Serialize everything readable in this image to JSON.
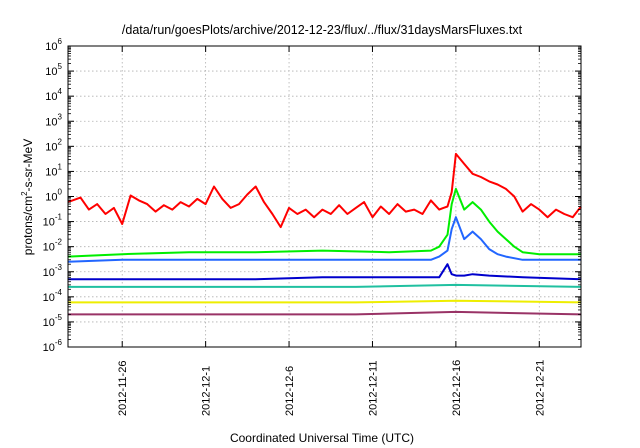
{
  "chart_data": {
    "type": "line",
    "title": "/data/run/goesPlots/archive/2012-12-23/flux/../flux/31daysMarsFluxes.txt",
    "xlabel": "Coordinated Universal Time (UTC)",
    "ylabel": {
      "prefix": "protons/cm",
      "sup": "2",
      "suffix": "-s-sr-MeV"
    },
    "yscale": "log",
    "ylim": [
      1e-06,
      1000000.0
    ],
    "yticks": [
      {
        "base": "10",
        "exp": "-6",
        "value": 1e-06
      },
      {
        "base": "10",
        "exp": "-5",
        "value": 1e-05
      },
      {
        "base": "10",
        "exp": "-4",
        "value": 0.0001
      },
      {
        "base": "10",
        "exp": "-3",
        "value": 0.001
      },
      {
        "base": "10",
        "exp": "-2",
        "value": 0.01
      },
      {
        "base": "10",
        "exp": "-1",
        "value": 0.1
      },
      {
        "base": "10",
        "exp": "0",
        "value": 1
      },
      {
        "base": "10",
        "exp": "1",
        "value": 10
      },
      {
        "base": "10",
        "exp": "2",
        "value": 100
      },
      {
        "base": "10",
        "exp": "3",
        "value": 1000
      },
      {
        "base": "10",
        "exp": "4",
        "value": 10000
      },
      {
        "base": "10",
        "exp": "5",
        "value": 100000
      },
      {
        "base": "10",
        "exp": "6",
        "value": 1000000
      }
    ],
    "xlim": [
      "2012-11-22T18:00",
      "2012-12-23T12:00"
    ],
    "xtick_labels": [
      "2012-11-26",
      "2012-12-1",
      "2012-12-6",
      "2012-12-11",
      "2012-12-16",
      "2012-12-21"
    ],
    "xtick_dates": [
      "2012-11-26",
      "2012-12-01",
      "2012-12-06",
      "2012-12-11",
      "2012-12-16",
      "2012-12-21"
    ],
    "grid": true,
    "legend": "none",
    "series": [
      {
        "color": "#ff0000",
        "x": [
          "2012-11-22T18:00",
          "2012-11-23T12:00",
          "2012-11-24T00:00",
          "2012-11-24T12:00",
          "2012-11-25T00:00",
          "2012-11-25T12:00",
          "2012-11-26T00:00",
          "2012-11-26T12:00",
          "2012-11-27T00:00",
          "2012-11-27T12:00",
          "2012-11-28T00:00",
          "2012-11-28T12:00",
          "2012-11-29T00:00",
          "2012-11-29T12:00",
          "2012-11-30T00:00",
          "2012-11-30T12:00",
          "2012-12-01T00:00",
          "2012-12-01T12:00",
          "2012-12-02T00:00",
          "2012-12-02T12:00",
          "2012-12-03T00:00",
          "2012-12-03T12:00",
          "2012-12-04T00:00",
          "2012-12-04T12:00",
          "2012-12-05T00:00",
          "2012-12-05T12:00",
          "2012-12-06T00:00",
          "2012-12-06T12:00",
          "2012-12-07T00:00",
          "2012-12-07T12:00",
          "2012-12-08T00:00",
          "2012-12-08T12:00",
          "2012-12-09T00:00",
          "2012-12-09T12:00",
          "2012-12-10T00:00",
          "2012-12-10T12:00",
          "2012-12-11T00:00",
          "2012-12-11T12:00",
          "2012-12-12T00:00",
          "2012-12-12T12:00",
          "2012-12-13T00:00",
          "2012-12-13T12:00",
          "2012-12-14T00:00",
          "2012-12-14T12:00",
          "2012-12-15T00:00",
          "2012-12-15T06:00",
          "2012-12-15T12:00",
          "2012-12-15T18:00",
          "2012-12-16T00:00",
          "2012-12-16T12:00",
          "2012-12-17T00:00",
          "2012-12-17T12:00",
          "2012-12-18T00:00",
          "2012-12-18T12:00",
          "2012-12-19T00:00",
          "2012-12-19T12:00",
          "2012-12-20T00:00",
          "2012-12-20T12:00",
          "2012-12-21T00:00",
          "2012-12-21T12:00",
          "2012-12-22T00:00",
          "2012-12-22T12:00",
          "2012-12-23T00:00",
          "2012-12-23T12:00"
        ],
        "values": [
          0.6,
          0.9,
          0.3,
          0.5,
          0.2,
          0.35,
          0.08,
          1.1,
          0.7,
          0.5,
          0.25,
          0.45,
          0.3,
          0.6,
          0.4,
          0.8,
          0.5,
          2.5,
          0.8,
          0.35,
          0.5,
          1.2,
          2.5,
          0.6,
          0.2,
          0.06,
          0.35,
          0.2,
          0.3,
          0.15,
          0.3,
          0.2,
          0.45,
          0.2,
          0.35,
          0.6,
          0.15,
          0.4,
          0.2,
          0.5,
          0.25,
          0.3,
          0.2,
          0.7,
          0.3,
          0.35,
          0.4,
          1.5,
          50,
          20,
          8,
          6,
          4,
          3,
          2,
          1,
          0.25,
          0.5,
          0.3,
          0.15,
          0.3,
          0.2,
          0.15,
          0.4
        ]
      },
      {
        "color": "#00ee00",
        "x": [
          "2012-11-22T18:00",
          "2012-11-26T00:00",
          "2012-11-30T00:00",
          "2012-12-04T00:00",
          "2012-12-08T00:00",
          "2012-12-12T00:00",
          "2012-12-14T12:00",
          "2012-12-15T00:00",
          "2012-12-15T12:00",
          "2012-12-15T18:00",
          "2012-12-16T00:00",
          "2012-12-16T12:00",
          "2012-12-17T00:00",
          "2012-12-17T12:00",
          "2012-12-18T00:00",
          "2012-12-18T12:00",
          "2012-12-19T00:00",
          "2012-12-19T12:00",
          "2012-12-20T00:00",
          "2012-12-21T00:00",
          "2012-12-22T00:00",
          "2012-12-23T12:00"
        ],
        "values": [
          0.004,
          0.005,
          0.006,
          0.006,
          0.007,
          0.006,
          0.007,
          0.01,
          0.03,
          0.5,
          2,
          0.3,
          0.6,
          0.3,
          0.1,
          0.04,
          0.02,
          0.01,
          0.006,
          0.005,
          0.005,
          0.005
        ]
      },
      {
        "color": "#2266ff",
        "x": [
          "2012-11-22T18:00",
          "2012-11-26T00:00",
          "2012-11-30T00:00",
          "2012-12-04T00:00",
          "2012-12-08T00:00",
          "2012-12-12T00:00",
          "2012-12-14T12:00",
          "2012-12-15T00:00",
          "2012-12-15T12:00",
          "2012-12-15T18:00",
          "2012-12-16T00:00",
          "2012-12-16T12:00",
          "2012-12-17T00:00",
          "2012-12-17T12:00",
          "2012-12-18T00:00",
          "2012-12-18T12:00",
          "2012-12-19T00:00",
          "2012-12-20T00:00",
          "2012-12-21T00:00",
          "2012-12-22T00:00",
          "2012-12-23T12:00"
        ],
        "values": [
          0.0025,
          0.003,
          0.003,
          0.003,
          0.003,
          0.003,
          0.003,
          0.004,
          0.007,
          0.05,
          0.15,
          0.02,
          0.04,
          0.02,
          0.008,
          0.005,
          0.004,
          0.003,
          0.003,
          0.003,
          0.003
        ]
      },
      {
        "color": "#0000cc",
        "x": [
          "2012-11-22T18:00",
          "2012-11-26T00:00",
          "2012-11-30T00:00",
          "2012-12-04T00:00",
          "2012-12-08T00:00",
          "2012-12-12T00:00",
          "2012-12-15T00:00",
          "2012-12-15T12:00",
          "2012-12-15T18:00",
          "2012-12-16T00:00",
          "2012-12-16T12:00",
          "2012-12-17T00:00",
          "2012-12-18T00:00",
          "2012-12-20T00:00",
          "2012-12-23T12:00"
        ],
        "values": [
          0.0005,
          0.0005,
          0.0005,
          0.0005,
          0.0006,
          0.0006,
          0.0006,
          0.002,
          0.0008,
          0.0007,
          0.0007,
          0.0008,
          0.0007,
          0.0006,
          0.0005
        ]
      },
      {
        "color": "#20c0a0",
        "x": [
          "2012-11-22T18:00",
          "2012-12-01T00:00",
          "2012-12-10T00:00",
          "2012-12-16T00:00",
          "2012-12-23T12:00"
        ],
        "values": [
          0.00025,
          0.00025,
          0.00025,
          0.0003,
          0.00025
        ]
      },
      {
        "color": "#eeee00",
        "x": [
          "2012-11-22T18:00",
          "2012-12-01T00:00",
          "2012-12-10T00:00",
          "2012-12-16T00:00",
          "2012-12-23T12:00"
        ],
        "values": [
          6e-05,
          6e-05,
          6e-05,
          7e-05,
          6e-05
        ]
      },
      {
        "color": "#993366",
        "x": [
          "2012-11-22T18:00",
          "2012-12-01T00:00",
          "2012-12-10T00:00",
          "2012-12-16T00:00",
          "2012-12-23T12:00"
        ],
        "values": [
          2e-05,
          2e-05,
          2e-05,
          2.5e-05,
          2e-05
        ]
      }
    ]
  }
}
